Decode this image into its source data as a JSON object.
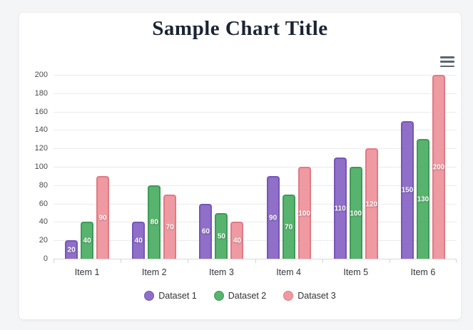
{
  "page": {
    "background": "#f4f5f6"
  },
  "chart_card": {
    "background": "#ffffff"
  },
  "icons": {
    "menu": "hamburger-menu-icon"
  },
  "chart_data": {
    "type": "bar",
    "title": "Sample Chart Title",
    "categories": [
      "Item 1",
      "Item 2",
      "Item 3",
      "Item 4",
      "Item 5",
      "Item 6"
    ],
    "series": [
      {
        "name": "Dataset 1",
        "values": [
          20,
          40,
          60,
          90,
          110,
          150
        ],
        "fill": "#8f6fc8",
        "border": "#7656b8"
      },
      {
        "name": "Dataset 2",
        "values": [
          40,
          80,
          50,
          70,
          100,
          130
        ],
        "fill": "#57b36e",
        "border": "#3d9b58"
      },
      {
        "name": "Dataset 3",
        "values": [
          90,
          70,
          40,
          100,
          120,
          200
        ],
        "fill": "#ef9aa2",
        "border": "#e27983"
      }
    ],
    "ylim": [
      0,
      200
    ],
    "ytick_step": 20,
    "grid": true,
    "legend_position": "bottom",
    "value_labels": "inside-center",
    "value_label_color": "#ffffff"
  }
}
